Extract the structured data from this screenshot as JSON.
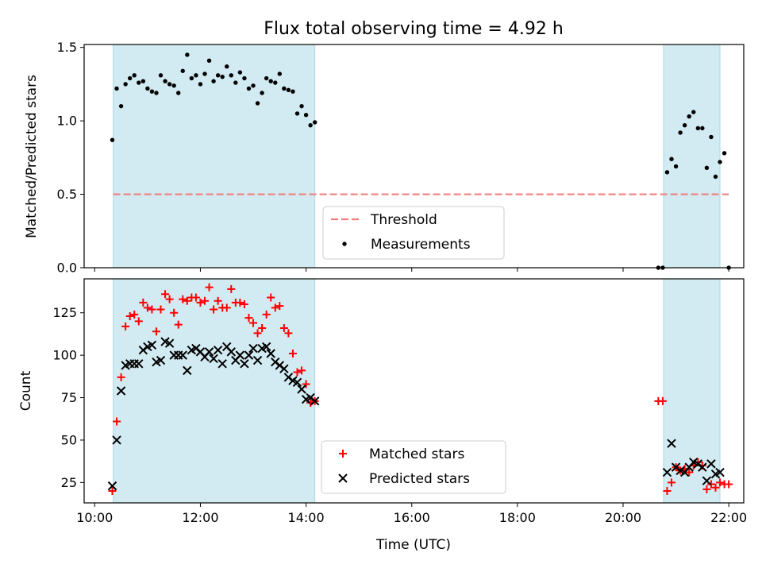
{
  "chart_data": [
    {
      "type": "scatter",
      "title": "Flux total observing time = 4.92 h",
      "xlabel": "",
      "ylabel": "Matched/Predicted stars",
      "ylim": [
        0,
        1.52
      ],
      "yticks": [
        "0.0",
        "0.5",
        "1.0",
        "1.5"
      ],
      "xlim": [
        "09:48",
        "22:17"
      ],
      "shaded_spans": [
        [
          "10:21",
          "14:10"
        ],
        [
          "20:46",
          "21:50"
        ]
      ],
      "shade_color": "#add8e6",
      "threshold": {
        "name": "Threshold",
        "value": 0.5,
        "x_range": [
          "10:21",
          "22:00"
        ],
        "color": "#f08080",
        "style": "dashed"
      },
      "legend": {
        "position": "lower-center",
        "entries": [
          "Threshold",
          "Measurements"
        ]
      },
      "series": [
        {
          "name": "Measurements",
          "marker": "dot",
          "color": "#000000",
          "x": [
            "10:20",
            "10:25",
            "10:30",
            "10:35",
            "10:40",
            "10:45",
            "10:50",
            "10:55",
            "11:00",
            "11:05",
            "11:10",
            "11:15",
            "11:20",
            "11:25",
            "11:30",
            "11:35",
            "11:40",
            "11:45",
            "11:50",
            "11:55",
            "12:00",
            "12:05",
            "12:10",
            "12:15",
            "12:20",
            "12:25",
            "12:30",
            "12:35",
            "12:40",
            "12:45",
            "12:50",
            "12:55",
            "13:00",
            "13:05",
            "13:10",
            "13:15",
            "13:20",
            "13:25",
            "13:30",
            "13:35",
            "13:40",
            "13:45",
            "13:50",
            "13:55",
            "14:00",
            "14:05",
            "14:10",
            "20:40",
            "20:45",
            "20:50",
            "20:55",
            "21:00",
            "21:05",
            "21:10",
            "21:15",
            "21:20",
            "21:25",
            "21:30",
            "21:35",
            "21:40",
            "21:45",
            "21:50",
            "21:55",
            "22:00"
          ],
          "y": [
            0.87,
            1.22,
            1.1,
            1.25,
            1.29,
            1.31,
            1.26,
            1.27,
            1.22,
            1.2,
            1.19,
            1.31,
            1.27,
            1.25,
            1.24,
            1.19,
            1.34,
            1.45,
            1.29,
            1.31,
            1.25,
            1.32,
            1.41,
            1.27,
            1.31,
            1.3,
            1.37,
            1.31,
            1.26,
            1.33,
            1.29,
            1.22,
            1.24,
            1.12,
            1.19,
            1.29,
            1.27,
            1.26,
            1.32,
            1.22,
            1.21,
            1.2,
            1.05,
            1.1,
            1.04,
            0.97,
            0.99,
            0.0,
            0.0,
            0.65,
            0.74,
            0.69,
            0.92,
            0.97,
            1.03,
            1.06,
            0.95,
            0.95,
            0.68,
            0.89,
            0.62,
            0.72,
            0.78,
            0.0
          ]
        }
      ]
    },
    {
      "type": "scatter",
      "title": "",
      "xlabel": "Time (UTC)",
      "ylabel": "Count",
      "ylim": [
        13,
        145
      ],
      "yticks": [
        "25",
        "50",
        "75",
        "100",
        "125"
      ],
      "xlim": [
        "09:48",
        "22:17"
      ],
      "xticks": [
        "10:00",
        "12:00",
        "14:00",
        "16:00",
        "18:00",
        "20:00",
        "22:00"
      ],
      "shaded_spans": [
        [
          "10:21",
          "14:10"
        ],
        [
          "20:46",
          "21:50"
        ]
      ],
      "shade_color": "#add8e6",
      "legend": {
        "position": "lower-center",
        "entries": [
          "Matched stars",
          "Predicted stars"
        ]
      },
      "series": [
        {
          "name": "Matched stars",
          "marker": "plus",
          "color": "#ff0000",
          "x": [
            "10:20",
            "10:25",
            "10:30",
            "10:35",
            "10:40",
            "10:45",
            "10:50",
            "10:55",
            "11:00",
            "11:05",
            "11:10",
            "11:15",
            "11:20",
            "11:25",
            "11:30",
            "11:35",
            "11:40",
            "11:45",
            "11:50",
            "11:55",
            "12:00",
            "12:05",
            "12:10",
            "12:15",
            "12:20",
            "12:25",
            "12:30",
            "12:35",
            "12:40",
            "12:45",
            "12:50",
            "12:55",
            "13:00",
            "13:05",
            "13:10",
            "13:15",
            "13:20",
            "13:25",
            "13:30",
            "13:35",
            "13:40",
            "13:45",
            "13:50",
            "13:55",
            "14:00",
            "14:05",
            "14:10",
            "20:40",
            "20:45",
            "20:50",
            "20:55",
            "21:00",
            "21:05",
            "21:10",
            "21:15",
            "21:20",
            "21:25",
            "21:30",
            "21:35",
            "21:40",
            "21:45",
            "21:50",
            "21:55",
            "22:00"
          ],
          "y": [
            20,
            61,
            87,
            117,
            123,
            124,
            120,
            131,
            128,
            127,
            114,
            127,
            136,
            133,
            125,
            118,
            133,
            132,
            134,
            134,
            131,
            132,
            140,
            127,
            132,
            128,
            128,
            139,
            131,
            131,
            130,
            122,
            119,
            113,
            116,
            124,
            134,
            128,
            129,
            116,
            113,
            101,
            90,
            91,
            83,
            72,
            73,
            73,
            73,
            20,
            25,
            34,
            32,
            33,
            31,
            35,
            37,
            35,
            21,
            24,
            22,
            25,
            24,
            24
          ]
        },
        {
          "name": "Predicted stars",
          "marker": "x",
          "color": "#000000",
          "x": [
            "10:20",
            "10:25",
            "10:30",
            "10:35",
            "10:40",
            "10:45",
            "10:50",
            "10:55",
            "11:00",
            "11:05",
            "11:10",
            "11:15",
            "11:20",
            "11:25",
            "11:30",
            "11:35",
            "11:40",
            "11:45",
            "11:50",
            "11:55",
            "12:00",
            "12:05",
            "12:10",
            "12:15",
            "12:20",
            "12:25",
            "12:30",
            "12:35",
            "12:40",
            "12:45",
            "12:50",
            "12:55",
            "13:00",
            "13:05",
            "13:10",
            "13:15",
            "13:20",
            "13:25",
            "13:30",
            "13:35",
            "13:40",
            "13:45",
            "13:50",
            "13:55",
            "14:00",
            "14:05",
            "14:10",
            "20:50",
            "20:55",
            "21:00",
            "21:05",
            "21:10",
            "21:15",
            "21:20",
            "21:25",
            "21:30",
            "21:35",
            "21:40",
            "21:45",
            "21:50"
          ],
          "y": [
            23,
            50,
            79,
            94,
            95,
            95,
            95,
            103,
            105,
            106,
            96,
            97,
            108,
            107,
            100,
            100,
            100,
            91,
            103,
            104,
            102,
            99,
            102,
            98,
            103,
            95,
            105,
            102,
            97,
            100,
            95,
            100,
            104,
            97,
            104,
            105,
            101,
            96,
            94,
            92,
            87,
            85,
            84,
            80,
            74,
            75,
            73,
            31,
            48,
            34,
            32,
            31,
            34,
            37,
            36,
            34,
            26,
            36,
            30,
            31
          ]
        }
      ]
    }
  ]
}
